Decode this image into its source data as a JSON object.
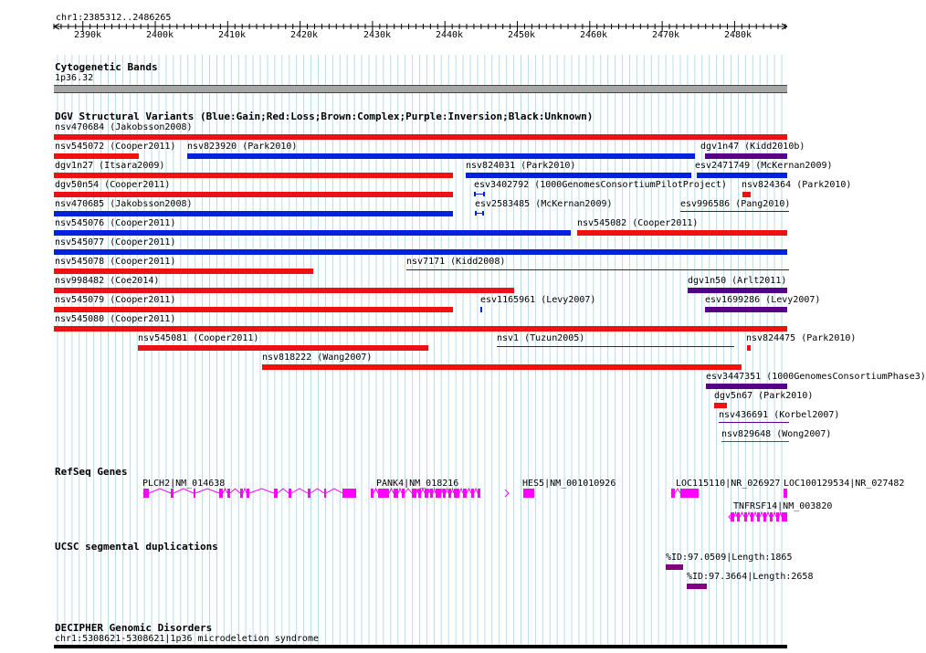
{
  "coordinate": "chr1:2385312..2486265",
  "ruler": {
    "ticks": [
      "2390k",
      "2400k",
      "2410k",
      "2420k",
      "2430k",
      "2440k",
      "2450k",
      "2460k",
      "2470k",
      "2480k"
    ]
  },
  "tracks": {
    "cytoband": {
      "title": "Cytogenetic Bands",
      "band": "1p36.32"
    },
    "dgv": {
      "title": "DGV Structural Variants (Blue:Gain;Red:Loss;Brown:Complex;Purple:Inversion;Black:Unknown)"
    },
    "refseq": {
      "title": "RefSeq Genes"
    },
    "segdup": {
      "title": "UCSC segmental duplications"
    },
    "decipher": {
      "title": "DECIPHER Genomic Disorders",
      "item": "chr1:5308621-5308621|1p36 microdeletion syndrome"
    }
  },
  "colors": {
    "gain": "#0022dd",
    "loss": "#ee1111",
    "inversion": "#550088",
    "gene": "#ff00ff",
    "segdup": "#800080"
  },
  "dgv_features": [
    {
      "label": "nsv470684 (Jakobsson2008)",
      "kind": "loss"
    },
    {
      "label": "nsv545072 (Cooper2011)",
      "kind": "loss"
    },
    {
      "label": "nsv823920 (Park2010)",
      "kind": "gain"
    },
    {
      "label": "dgv1n47 (Kidd2010b)",
      "kind": "inversion"
    },
    {
      "label": "dgv1n27 (Itsara2009)",
      "kind": "loss"
    },
    {
      "label": "nsv824031 (Park2010)",
      "kind": "gain"
    },
    {
      "label": "esv2471749 (McKernan2009)",
      "kind": "gain"
    },
    {
      "label": "dgv50n54 (Cooper2011)",
      "kind": "loss"
    },
    {
      "label": "esv3402792 (1000GenomesConsortiumPilotProject)",
      "kind": "gain"
    },
    {
      "label": "nsv824364 (Park2010)",
      "kind": "loss"
    },
    {
      "label": "nsv470685 (Jakobsson2008)",
      "kind": "gain"
    },
    {
      "label": "esv2583485 (McKernan2009)",
      "kind": "gain"
    },
    {
      "label": "esv996586 (Pang2010)",
      "kind": "gain"
    },
    {
      "label": "nsv545076 (Cooper2011)",
      "kind": "gain"
    },
    {
      "label": "nsv545082 (Cooper2011)",
      "kind": "loss"
    },
    {
      "label": "nsv545077 (Cooper2011)",
      "kind": "gain"
    },
    {
      "label": "nsv545078 (Cooper2011)",
      "kind": "loss"
    },
    {
      "label": "nsv7171 (Kidd2008)",
      "kind": "gain"
    },
    {
      "label": "nsv998482 (Coe2014)",
      "kind": "loss"
    },
    {
      "label": "dgv1n50 (Arlt2011)",
      "kind": "inversion"
    },
    {
      "label": "nsv545079 (Cooper2011)",
      "kind": "loss"
    },
    {
      "label": "esv1165961 (Levy2007)",
      "kind": "gain"
    },
    {
      "label": "esv1699286 (Levy2007)",
      "kind": "inversion"
    },
    {
      "label": "nsv545080 (Cooper2011)",
      "kind": "loss"
    },
    {
      "label": "nsv545081 (Cooper2011)",
      "kind": "loss"
    },
    {
      "label": "nsv1 (Tuzun2005)",
      "kind": "gain"
    },
    {
      "label": "nsv824475 (Park2010)",
      "kind": "loss"
    },
    {
      "label": "nsv818222 (Wang2007)",
      "kind": "loss"
    },
    {
      "label": "esv3447351 (1000GenomesConsortiumPhase3)",
      "kind": "inversion"
    },
    {
      "label": "dgv5n67 (Park2010)",
      "kind": "loss"
    },
    {
      "label": "nsv436691 (Korbel2007)",
      "kind": "inversion"
    },
    {
      "label": "nsv829648 (Wong2007)",
      "kind": "loss"
    }
  ],
  "genes": [
    {
      "label": "PLCH2|NM_014638"
    },
    {
      "label": "PANK4|NM_018216"
    },
    {
      "label": "HES5|NM_001010926"
    },
    {
      "label": "LOC115110|NR_026927"
    },
    {
      "label": "LOC100129534|NR_027482"
    },
    {
      "label": "TNFRSF14|NM_003820"
    }
  ],
  "segdups": [
    {
      "label": "%ID:97.0509|Length:1865"
    },
    {
      "label": "%ID:97.3664|Length:2658"
    }
  ]
}
